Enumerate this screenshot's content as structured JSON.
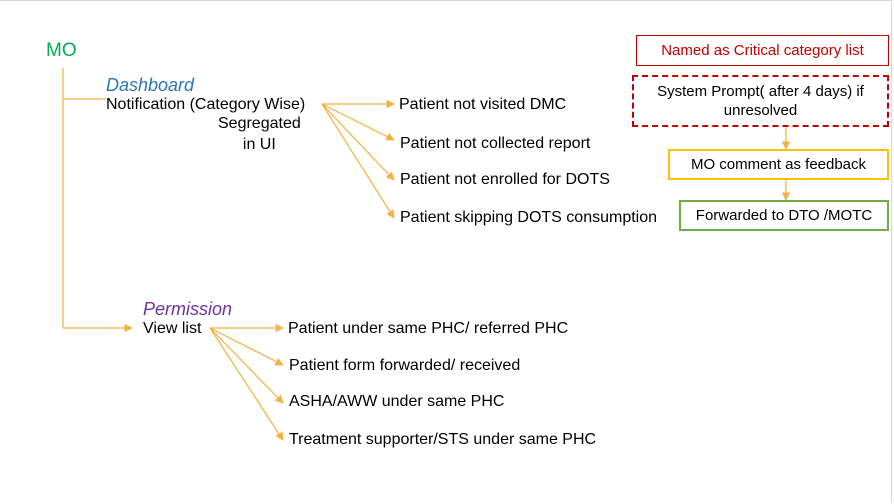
{
  "root": {
    "label": "MO"
  },
  "dashboard": {
    "section_label": "Dashboard",
    "notification_label": "Notification (Category Wise)",
    "segregated_note": "Segregated\nin UI",
    "items": [
      "Patient not visited DMC",
      "Patient not collected report",
      "Patient not enrolled for DOTS",
      "Patient skipping DOTS consumption"
    ]
  },
  "permission": {
    "section_label": "Permission",
    "view_list_label": "View list",
    "items": [
      "Patient under same PHC/ referred PHC",
      "Patient form forwarded/ received",
      "ASHA/AWW under same PHC",
      "Treatment supporter/STS under same PHC"
    ]
  },
  "flow": {
    "critical_list": "Named as Critical category list",
    "system_prompt": "System Prompt( after 4 days) if unresolved",
    "mo_comment": "MO comment as feedback",
    "forwarded": "Forwarded to DTO /MOTC"
  },
  "colors": {
    "connector": "#f4b042",
    "root": "#00b050",
    "dashboard": "#2e75b6",
    "permission": "#7030a0",
    "critical": "#c00000",
    "feedback_border": "#ffc000",
    "forward_border": "#70ad47"
  }
}
